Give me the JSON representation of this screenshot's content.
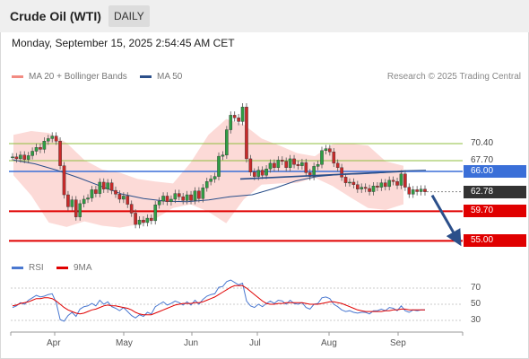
{
  "header": {
    "title": "Crude Oil (WTI)",
    "period_tab": "DAILY"
  },
  "timestamp": "Monday, September 15, 2025 2:54:45 AM CET",
  "legend": {
    "bollinger": {
      "label": "MA 20 + Bollinger Bands",
      "color": "#f28b82"
    },
    "ma50": {
      "label": "MA 50",
      "color": "#2b4f8a"
    }
  },
  "credit": "Research © 2025 Trading Central",
  "indicator_legend": {
    "rsi": {
      "label": "RSI",
      "color": "#4a78d0"
    },
    "ma9": {
      "label": "9MA",
      "color": "#e00000"
    }
  },
  "chart_data": [
    {
      "type": "candlestick",
      "title": "Crude Oil (WTI)",
      "timeframe": "DAILY",
      "x_ticks": [
        "Apr",
        "May",
        "Jun",
        "Jul",
        "Aug",
        "Sep"
      ],
      "ylim": [
        52.5,
        79.5
      ],
      "levels": [
        {
          "label": "70.40",
          "value": 70.4,
          "kind": "resistance",
          "color": "#8fbf3f"
        },
        {
          "label": "67.70",
          "value": 67.7,
          "kind": "resistance",
          "color": "#8fbf3f"
        },
        {
          "label": "66.00",
          "value": 66.0,
          "kind": "pivot",
          "color": "#3a6fd8"
        },
        {
          "label": "62.78",
          "value": 62.78,
          "kind": "last",
          "color": "#333333"
        },
        {
          "label": "59.70",
          "value": 59.7,
          "kind": "support",
          "color": "#e00000"
        },
        {
          "label": "55.00",
          "value": 55.0,
          "kind": "support",
          "color": "#e00000"
        }
      ],
      "close_series": [
        68.3,
        68.0,
        68.6,
        67.9,
        68.5,
        69.2,
        69.8,
        69.5,
        70.8,
        71.2,
        71.6,
        70.8,
        66.9,
        62.3,
        60.4,
        61.5,
        58.8,
        60.9,
        61.6,
        61.8,
        63.1,
        62.5,
        64.3,
        63.2,
        64.2,
        63.0,
        62.4,
        61.6,
        62.1,
        60.8,
        59.4,
        57.6,
        58.3,
        57.9,
        58.6,
        58.2,
        60.7,
        61.3,
        62.1,
        61.2,
        61.6,
        62.5,
        62.0,
        61.4,
        62.3,
        61.4,
        62.9,
        61.7,
        63.4,
        64.4,
        64.8,
        65.2,
        68.4,
        68.6,
        72.6,
        74.9,
        74.5,
        73.9,
        76.2,
        68.0,
        65.9,
        65.2,
        66.2,
        65.4,
        66.4,
        67.3,
        66.6,
        67.8,
        67.6,
        66.6,
        68.0,
        67.1,
        66.9,
        67.4,
        65.8,
        65.2,
        66.8,
        67.1,
        69.3,
        69.6,
        69.1,
        67.3,
        66.6,
        65.1,
        64.2,
        64.3,
        63.9,
        63.2,
        63.5,
        63.3,
        62.8,
        63.7,
        63.5,
        64.2,
        63.6,
        64.6,
        64.4,
        63.8,
        65.6,
        63.5,
        62.4,
        63.1,
        62.8,
        63.2,
        62.78
      ],
      "ma50_series": [
        67.8,
        67.2,
        66.2,
        65.0,
        63.7,
        62.4,
        61.7,
        61.3,
        61.2,
        61.5,
        62.0,
        62.3,
        63.3,
        64.5,
        65.2,
        65.5,
        65.6,
        65.8,
        66.1,
        66.2
      ],
      "bollinger": {
        "upper": [
          71.8,
          72.4,
          72.1,
          70.5,
          67.8,
          66.3,
          65.8,
          64.8,
          64.4,
          64.1,
          67.4,
          71.8,
          74.3,
          73.4,
          71.2,
          70.1,
          68.9,
          68.4,
          70.3,
          70.4,
          70.1,
          67.6,
          66.9
        ],
        "lower": [
          65.4,
          62.2,
          57.9,
          57.2,
          58.1,
          57.4,
          57.1,
          57.6,
          58.5,
          60.2,
          60.8,
          59.6,
          57.8,
          61.6,
          63.9,
          64.1,
          64.2,
          65.0,
          63.7,
          61.9,
          60.2,
          59.9,
          60.8
        ]
      },
      "trendline": {
        "from": 64.8,
        "to": 66.0
      },
      "forecast_arrow": {
        "from": 62.78,
        "to": 55.0
      }
    },
    {
      "type": "line",
      "title": "RSI",
      "ylim": [
        20,
        80
      ],
      "y_ticks": [
        "70",
        "50",
        "30"
      ],
      "series": [
        {
          "name": "RSI",
          "values": [
            46,
            48,
            52,
            50,
            55,
            58,
            61,
            59,
            60,
            62,
            63,
            52,
            31,
            29,
            36,
            40,
            35,
            44,
            47,
            48,
            51,
            48,
            55,
            50,
            53,
            47,
            45,
            42,
            46,
            41,
            36,
            33,
            37,
            35,
            40,
            38,
            47,
            50,
            53,
            49,
            51,
            54,
            52,
            49,
            53,
            49,
            55,
            50,
            56,
            60,
            62,
            63,
            71,
            72,
            78,
            80,
            77,
            74,
            76,
            54,
            48,
            46,
            50,
            47,
            51,
            54,
            51,
            55,
            54,
            50,
            55,
            51,
            50,
            52,
            46,
            44,
            50,
            51,
            58,
            59,
            57,
            50,
            47,
            43,
            41,
            42,
            40,
            39,
            40,
            40,
            38,
            42,
            42,
            44,
            42,
            46,
            45,
            42,
            48,
            42,
            40,
            43,
            42,
            43,
            43
          ]
        },
        {
          "name": "9MA",
          "values": [
            48,
            49,
            51,
            52,
            53,
            55,
            57,
            57,
            58,
            58,
            57,
            54,
            50,
            46,
            43,
            41,
            39,
            38,
            39,
            41,
            43,
            44,
            46,
            48,
            49,
            48,
            48,
            47,
            46,
            45,
            43,
            40,
            38,
            37,
            37,
            37,
            39,
            41,
            43,
            45,
            47,
            49,
            50,
            51,
            51,
            51,
            52,
            52,
            53,
            55,
            57,
            59,
            62,
            65,
            68,
            71,
            73,
            73,
            73,
            70,
            66,
            62,
            58,
            54,
            51,
            50,
            50,
            51,
            51,
            52,
            52,
            52,
            52,
            52,
            51,
            50,
            50,
            50,
            51,
            52,
            53,
            53,
            52,
            51,
            49,
            47,
            45,
            43,
            42,
            41,
            41,
            41,
            41,
            41,
            42,
            42,
            43,
            43,
            44,
            44,
            43,
            43,
            43,
            43,
            43
          ]
        }
      ]
    }
  ]
}
